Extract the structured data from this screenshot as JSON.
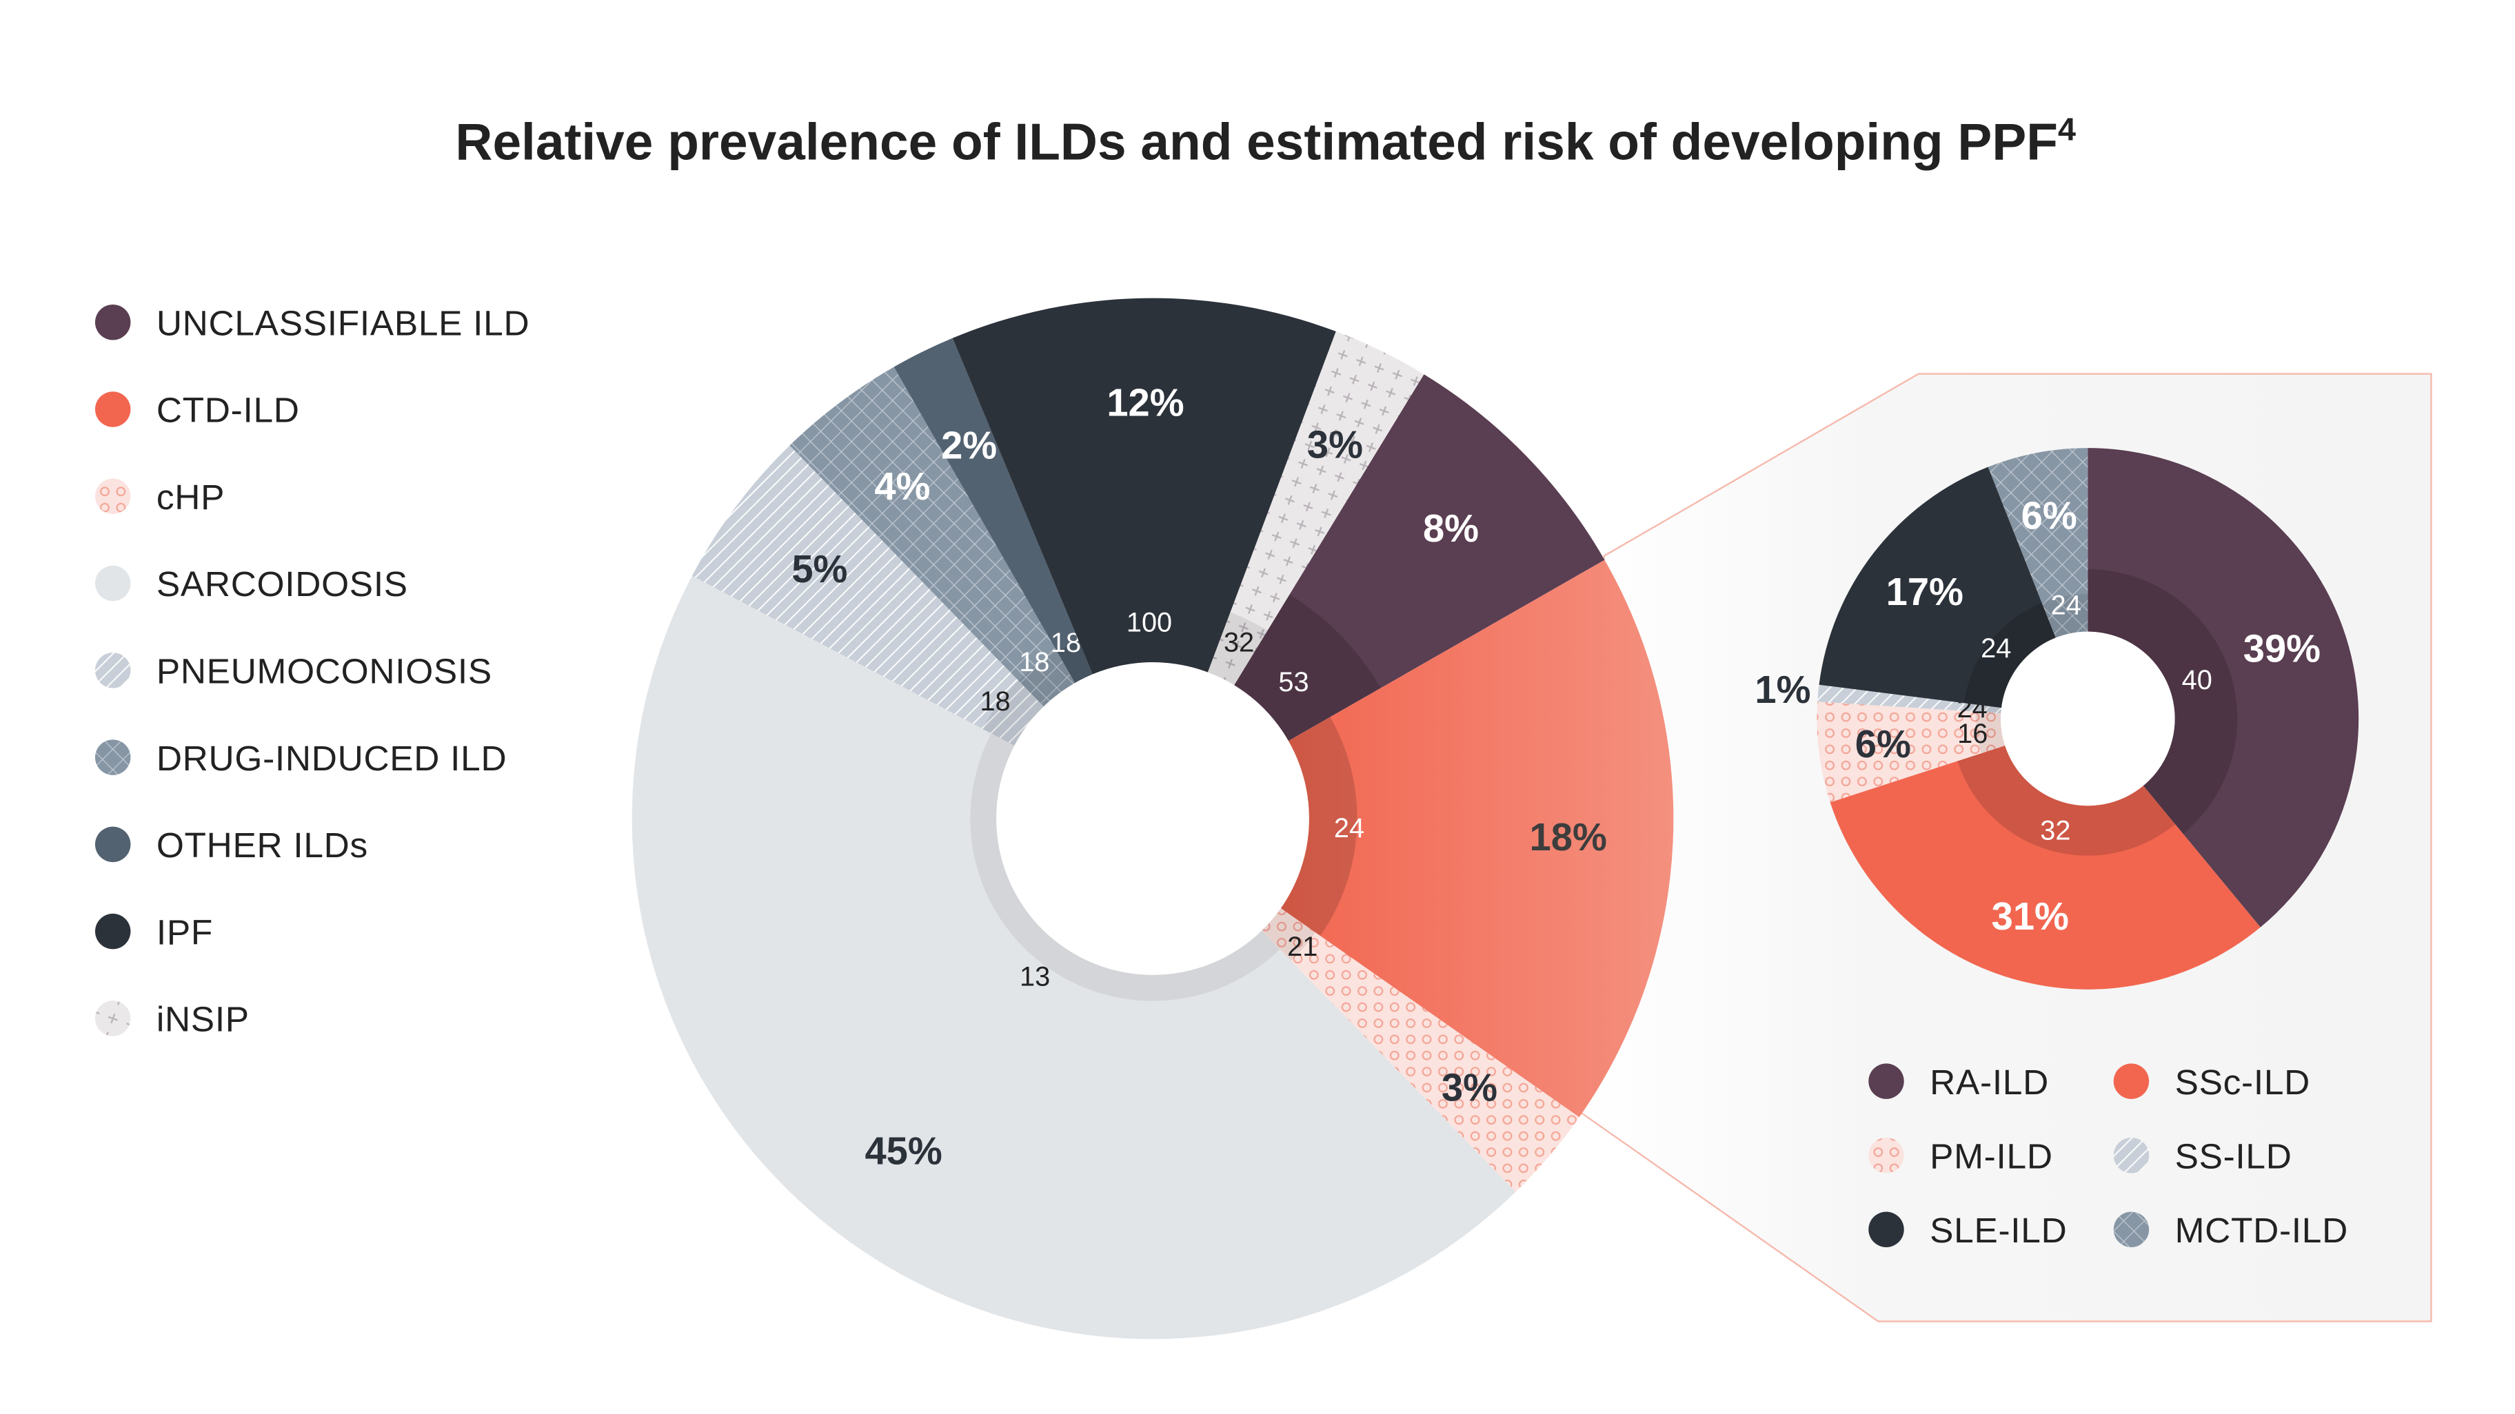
{
  "title": "Relative prevalence of ILDs and estimated risk of developing PPF",
  "title_superscript": "4",
  "chart_data": [
    {
      "type": "pie",
      "variant": "donut",
      "value_unit": "relative prevalence (%)",
      "inner_value_unit": "estimated risk of developing PPF",
      "slices": [
        {
          "name": "iNSIP",
          "value": 3,
          "risk": 32,
          "color": "#ebe8ea",
          "pattern": "plus"
        },
        {
          "name": "UNCLASSIFIABLE ILD",
          "value": 8,
          "risk": 53,
          "color": "#5a3e51",
          "pattern": "solid"
        },
        {
          "name": "CTD-ILD",
          "value": 18,
          "risk": 24,
          "color": "#f26650",
          "pattern": "solid"
        },
        {
          "name": "cHP",
          "value": 3,
          "risk": 21,
          "color": "#fbe3df",
          "pattern": "circles"
        },
        {
          "name": "SARCOIDOSIS",
          "value": 45,
          "risk": 13,
          "color": "#e2e5e8",
          "pattern": "solid"
        },
        {
          "name": "PNEUMOCONIOSIS",
          "value": 5,
          "risk": 18,
          "color": "#c8cfd8",
          "pattern": "hatch"
        },
        {
          "name": "DRUG-INDUCED ILD",
          "value": 4,
          "risk": 18,
          "color": "#8796a5",
          "pattern": "crosshatch"
        },
        {
          "name": "OTHER ILDs",
          "value": 2,
          "risk": 18,
          "color": "#536271",
          "pattern": "solid"
        },
        {
          "name": "IPF",
          "value": 12,
          "risk": 100,
          "color": "#2c323a",
          "pattern": "solid"
        }
      ],
      "legend": [
        "UNCLASSIFIABLE ILD",
        "CTD-ILD",
        "cHP",
        "SARCOIDOSIS",
        "PNEUMOCONIOSIS",
        "DRUG-INDUCED ILD",
        "OTHER ILDs",
        "IPF",
        "iNSIP"
      ],
      "legend_placement": "left"
    },
    {
      "type": "pie",
      "variant": "donut",
      "breakdown_of": "CTD-ILD",
      "slices": [
        {
          "name": "RA-ILD",
          "value": 39,
          "risk": 40,
          "color": "#5a3e51",
          "pattern": "solid"
        },
        {
          "name": "SSc-ILD",
          "value": 31,
          "risk": 32,
          "color": "#f26650",
          "pattern": "solid"
        },
        {
          "name": "PM-ILD",
          "value": 6,
          "risk": 16,
          "color": "#fbe3df",
          "pattern": "circles"
        },
        {
          "name": "SS-ILD",
          "value": 1,
          "risk": 24,
          "color": "#c8cfd8",
          "pattern": "hatch"
        },
        {
          "name": "SLE-ILD",
          "value": 17,
          "risk": 24,
          "color": "#2c323a",
          "pattern": "solid"
        },
        {
          "name": "MCTD-ILD",
          "value": 6,
          "risk": 24,
          "color": "#8796a5",
          "pattern": "crosshatch"
        }
      ],
      "legend": [
        "RA-ILD",
        "SSc-ILD",
        "PM-ILD",
        "SS-ILD",
        "SLE-ILD",
        "MCTD-ILD"
      ],
      "legend_placement": "bottom"
    }
  ]
}
